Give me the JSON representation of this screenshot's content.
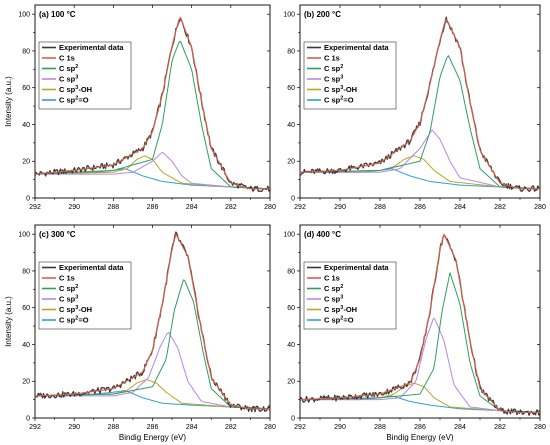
{
  "figure": {
    "ylabel": "Intensity (a.u.)",
    "xlabel": "Bindig Energy (eV)"
  },
  "colors": {
    "Experimental data": "#3a3a3a",
    "C 1s": "#d9614a",
    "C sp2": "#2e9e61",
    "C sp3": "#b886e8",
    "C sp3-OH": "#b7a823",
    "C sp2=O": "#2f9fd8"
  },
  "legend_entries": [
    "Experimental data",
    "C 1s",
    "C sp2",
    "C sp3",
    "C sp3-OH",
    "C sp2=O"
  ],
  "chart_data": [
    {
      "type": "line",
      "title": "(a) 100 °C",
      "xlabel": "",
      "ylabel": "Intensity (a.u.)",
      "xlim": [
        292,
        280
      ],
      "ylim": [
        0,
        105
      ],
      "x_ticks": [
        292,
        290,
        288,
        286,
        284,
        282,
        280
      ],
      "y_ticks": [
        0,
        20,
        40,
        60,
        80,
        100
      ],
      "baseline": {
        "x": [
          292,
          280
        ],
        "y": [
          13,
          5
        ]
      },
      "peaks": [
        {
          "name": "C sp2",
          "center": 284.6,
          "height": 86,
          "width": 0.9
        },
        {
          "name": "C sp3",
          "center": 285.5,
          "height": 25,
          "width": 0.75
        },
        {
          "name": "C sp3-OH",
          "center": 286.4,
          "height": 23,
          "width": 0.85
        },
        {
          "name": "C sp2=O",
          "center": 287.4,
          "height": 16,
          "width": 0.9
        }
      ],
      "series": [
        {
          "name": "Experimental data",
          "x": [
            292,
            290,
            288,
            286.5,
            286,
            285.5,
            285,
            284.6,
            284,
            283.5,
            283,
            282,
            281,
            280
          ],
          "y": [
            13,
            15,
            18,
            27,
            36,
            56,
            83,
            99,
            82,
            53,
            27,
            8,
            5,
            5
          ]
        },
        {
          "name": "C 1s",
          "x": [
            292,
            290,
            288,
            286.5,
            286,
            285.5,
            285,
            284.6,
            284,
            283.5,
            283,
            282,
            281,
            280
          ],
          "y": [
            13,
            15,
            18,
            27,
            36,
            56,
            83,
            99,
            82,
            53,
            27,
            8,
            5,
            5
          ]
        },
        {
          "name": "C sp2",
          "x": [
            292,
            288,
            286,
            285.5,
            285,
            284.6,
            284,
            283.5,
            283,
            282,
            280
          ],
          "y": [
            13,
            15,
            21,
            40,
            75,
            86,
            70,
            40,
            16,
            6,
            5
          ]
        },
        {
          "name": "C sp3",
          "x": [
            292,
            288,
            287,
            286,
            285.5,
            285,
            284.5,
            284,
            282,
            280
          ],
          "y": [
            13,
            13,
            14,
            20,
            25,
            20,
            12,
            8,
            6,
            5
          ]
        },
        {
          "name": "C sp3-OH",
          "x": [
            292,
            288,
            287.3,
            286.8,
            286.4,
            286,
            285.5,
            284.5,
            282,
            280
          ],
          "y": [
            13,
            14,
            16,
            21,
            23,
            21,
            14,
            8,
            6,
            5
          ]
        },
        {
          "name": "C sp2=O",
          "x": [
            292,
            289,
            288,
            287.4,
            286.5,
            285.5,
            284,
            282,
            280
          ],
          "y": [
            13,
            14,
            15,
            16,
            12,
            9,
            7,
            6,
            5
          ]
        }
      ]
    },
    {
      "type": "line",
      "title": "(b) 200 °C",
      "xlabel": "",
      "ylabel": "",
      "xlim": [
        292,
        280
      ],
      "ylim": [
        0,
        105
      ],
      "x_ticks": [
        292,
        290,
        288,
        286,
        284,
        282,
        280
      ],
      "y_ticks": [
        0,
        20,
        40,
        60,
        80,
        100
      ],
      "baseline": {
        "x": [
          292,
          280
        ],
        "y": [
          14,
          5
        ]
      },
      "peaks": [
        {
          "name": "C sp2",
          "center": 284.6,
          "height": 78,
          "width": 0.85
        },
        {
          "name": "C sp3",
          "center": 285.4,
          "height": 37,
          "width": 0.8
        },
        {
          "name": "C sp3-OH",
          "center": 286.3,
          "height": 23,
          "width": 0.85
        },
        {
          "name": "C sp2=O",
          "center": 287.4,
          "height": 16,
          "width": 0.9
        }
      ],
      "series": [
        {
          "name": "Experimental data",
          "x": [
            292,
            290,
            288,
            286.5,
            286,
            285.5,
            285,
            284.7,
            284,
            283.5,
            283,
            282,
            281,
            280
          ],
          "y": [
            14,
            15,
            19,
            31,
            41,
            62,
            86,
            98,
            82,
            52,
            26,
            8,
            5,
            5
          ]
        },
        {
          "name": "C 1s",
          "x": [
            292,
            290,
            288,
            286.5,
            286,
            285.5,
            285,
            284.7,
            284,
            283.5,
            283,
            282,
            281,
            280
          ],
          "y": [
            14,
            15,
            19,
            31,
            41,
            62,
            86,
            98,
            82,
            52,
            26,
            8,
            5,
            5
          ]
        },
        {
          "name": "C sp2",
          "x": [
            292,
            288,
            286,
            285.5,
            285,
            284.6,
            284,
            283.5,
            283,
            282,
            280
          ],
          "y": [
            14,
            15,
            20,
            36,
            66,
            78,
            64,
            38,
            16,
            6,
            5
          ]
        },
        {
          "name": "C sp3",
          "x": [
            292,
            288,
            287,
            286,
            285.4,
            285,
            284.5,
            284,
            282,
            280
          ],
          "y": [
            14,
            14,
            16,
            27,
            37,
            32,
            20,
            11,
            6,
            5
          ]
        },
        {
          "name": "C sp3-OH",
          "x": [
            292,
            288,
            287.3,
            286.8,
            286.3,
            285.8,
            285.3,
            284.5,
            282,
            280
          ],
          "y": [
            14,
            15,
            17,
            21,
            23,
            21,
            15,
            9,
            6,
            5
          ]
        },
        {
          "name": "C sp2=O",
          "x": [
            292,
            289,
            288,
            287.4,
            286.5,
            285.5,
            284,
            282,
            280
          ],
          "y": [
            14,
            14,
            15,
            16,
            12,
            9,
            7,
            6,
            5
          ]
        }
      ]
    },
    {
      "type": "line",
      "title": "(c) 300 °C",
      "xlabel": "Bindig Energy (eV)",
      "ylabel": "Intensity (a.u.)",
      "xlim": [
        292,
        280
      ],
      "ylim": [
        0,
        105
      ],
      "x_ticks": [
        292,
        290,
        288,
        286,
        284,
        282,
        280
      ],
      "y_ticks": [
        0,
        20,
        40,
        60,
        80,
        100
      ],
      "baseline": {
        "x": [
          292,
          280
        ],
        "y": [
          12,
          5
        ]
      },
      "peaks": [
        {
          "name": "C sp2",
          "center": 284.4,
          "height": 76,
          "width": 0.85
        },
        {
          "name": "C sp3",
          "center": 285.2,
          "height": 47,
          "width": 0.8
        },
        {
          "name": "C sp3-OH",
          "center": 286.3,
          "height": 21,
          "width": 0.85
        },
        {
          "name": "C sp2=O",
          "center": 287.4,
          "height": 15,
          "width": 0.9
        }
      ],
      "series": [
        {
          "name": "Experimental data",
          "x": [
            292,
            290,
            288,
            286.5,
            286,
            285.5,
            285,
            284.8,
            284.2,
            283.5,
            283,
            282,
            281,
            280
          ],
          "y": [
            12,
            13,
            16,
            25,
            37,
            62,
            92,
            100,
            88,
            48,
            22,
            7,
            5,
            5
          ]
        },
        {
          "name": "C 1s",
          "x": [
            292,
            290,
            288,
            286.5,
            286,
            285.5,
            285,
            284.8,
            284.2,
            283.5,
            283,
            282,
            281,
            280
          ],
          "y": [
            12,
            13,
            16,
            25,
            37,
            62,
            92,
            100,
            88,
            48,
            22,
            7,
            5,
            5
          ]
        },
        {
          "name": "C sp2",
          "x": [
            292,
            288,
            286,
            285.3,
            284.9,
            284.4,
            283.9,
            283.4,
            283,
            282,
            280
          ],
          "y": [
            12,
            13,
            17,
            32,
            58,
            76,
            63,
            35,
            16,
            6,
            5
          ]
        },
        {
          "name": "C sp3",
          "x": [
            292,
            288,
            287,
            286.2,
            285.6,
            285.2,
            284.7,
            284.2,
            283.5,
            282,
            280
          ],
          "y": [
            12,
            12,
            14,
            22,
            39,
            47,
            38,
            20,
            9,
            6,
            5
          ]
        },
        {
          "name": "C sp3-OH",
          "x": [
            292,
            288,
            287.3,
            286.8,
            286.3,
            285.8,
            285.3,
            284.5,
            282,
            280
          ],
          "y": [
            12,
            13,
            15,
            19,
            21,
            19,
            14,
            8,
            6,
            5
          ]
        },
        {
          "name": "C sp2=O",
          "x": [
            292,
            289,
            288,
            287.4,
            286.5,
            285.5,
            284,
            282,
            280
          ],
          "y": [
            12,
            13,
            14,
            15,
            11,
            8,
            7,
            6,
            5
          ]
        }
      ]
    },
    {
      "type": "line",
      "title": "(d) 400 °C",
      "xlabel": "Bindig Energy (eV)",
      "ylabel": "",
      "xlim": [
        292,
        280
      ],
      "ylim": [
        0,
        105
      ],
      "x_ticks": [
        292,
        290,
        288,
        286,
        284,
        282,
        280
      ],
      "y_ticks": [
        0,
        20,
        40,
        60,
        80,
        100
      ],
      "baseline": {
        "x": [
          292,
          280
        ],
        "y": [
          10,
          3
        ]
      },
      "peaks": [
        {
          "name": "C sp2",
          "center": 284.5,
          "height": 79,
          "width": 0.75
        },
        {
          "name": "C sp3",
          "center": 285.3,
          "height": 55,
          "width": 0.7
        },
        {
          "name": "C sp3-OH",
          "center": 286.3,
          "height": 19,
          "width": 0.75
        },
        {
          "name": "C sp2=O",
          "center": 287.4,
          "height": 12,
          "width": 0.9
        }
      ],
      "series": [
        {
          "name": "Experimental data",
          "x": [
            292,
            290,
            288,
            286.5,
            286,
            285.5,
            285,
            284.8,
            284.2,
            283.5,
            283,
            282,
            281,
            280
          ],
          "y": [
            10,
            11,
            13,
            19,
            32,
            58,
            92,
            100,
            86,
            42,
            16,
            4,
            3,
            3
          ]
        },
        {
          "name": "C 1s",
          "x": [
            292,
            290,
            288,
            286.5,
            286,
            285.5,
            285,
            284.8,
            284.2,
            283.5,
            283,
            282,
            281,
            280
          ],
          "y": [
            10,
            11,
            13,
            19,
            32,
            58,
            92,
            100,
            86,
            42,
            16,
            4,
            3,
            3
          ]
        },
        {
          "name": "C sp2",
          "x": [
            292,
            288,
            286,
            285.3,
            284.9,
            284.5,
            284,
            283.5,
            283,
            282,
            280
          ],
          "y": [
            10,
            11,
            13,
            27,
            58,
            79,
            62,
            30,
            12,
            4,
            3
          ]
        },
        {
          "name": "C sp3",
          "x": [
            292,
            288,
            287,
            286.2,
            285.7,
            285.3,
            284.8,
            284.3,
            283.5,
            282,
            280
          ],
          "y": [
            10,
            10,
            11,
            20,
            43,
            55,
            42,
            18,
            6,
            4,
            3
          ]
        },
        {
          "name": "C sp3-OH",
          "x": [
            292,
            288,
            287.3,
            286.8,
            286.3,
            285.8,
            285.3,
            284.5,
            282,
            280
          ],
          "y": [
            10,
            11,
            13,
            17,
            19,
            17,
            11,
            6,
            4,
            3
          ]
        },
        {
          "name": "C sp2=O",
          "x": [
            292,
            289,
            288,
            287.4,
            286.5,
            285.5,
            284,
            282,
            280
          ],
          "y": [
            10,
            10,
            11,
            12,
            9,
            7,
            5,
            4,
            3
          ]
        }
      ]
    }
  ]
}
